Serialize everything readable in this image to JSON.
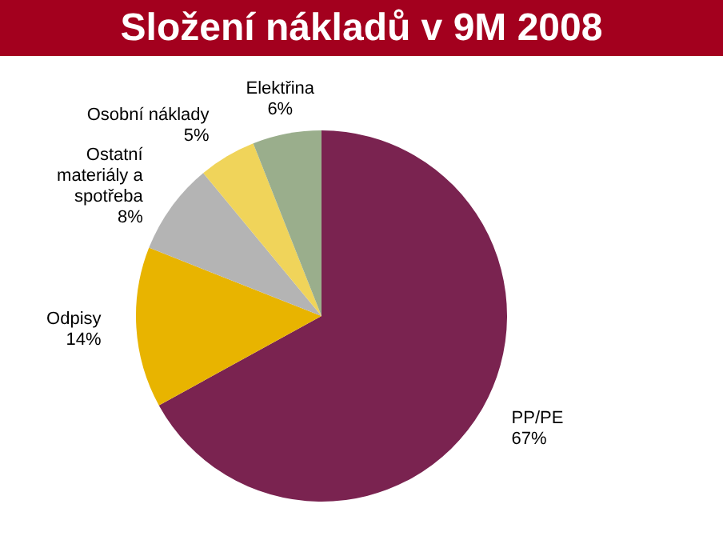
{
  "chart_data": {
    "type": "pie",
    "title": "Složení nákladů v 9M 2008",
    "categories": [
      "PP/PE",
      "Odpisy",
      "Ostatní materiály a spotřeba",
      "Osobní náklady",
      "Elektřina"
    ],
    "values": [
      67,
      14,
      8,
      5,
      6
    ],
    "value_labels": [
      "67%",
      "14%",
      "8%",
      "5%",
      "6%"
    ],
    "colors": [
      "#7a2350",
      "#e8b400",
      "#b4b4b4",
      "#f0d45a",
      "#9aae8c"
    ],
    "legend": false
  }
}
